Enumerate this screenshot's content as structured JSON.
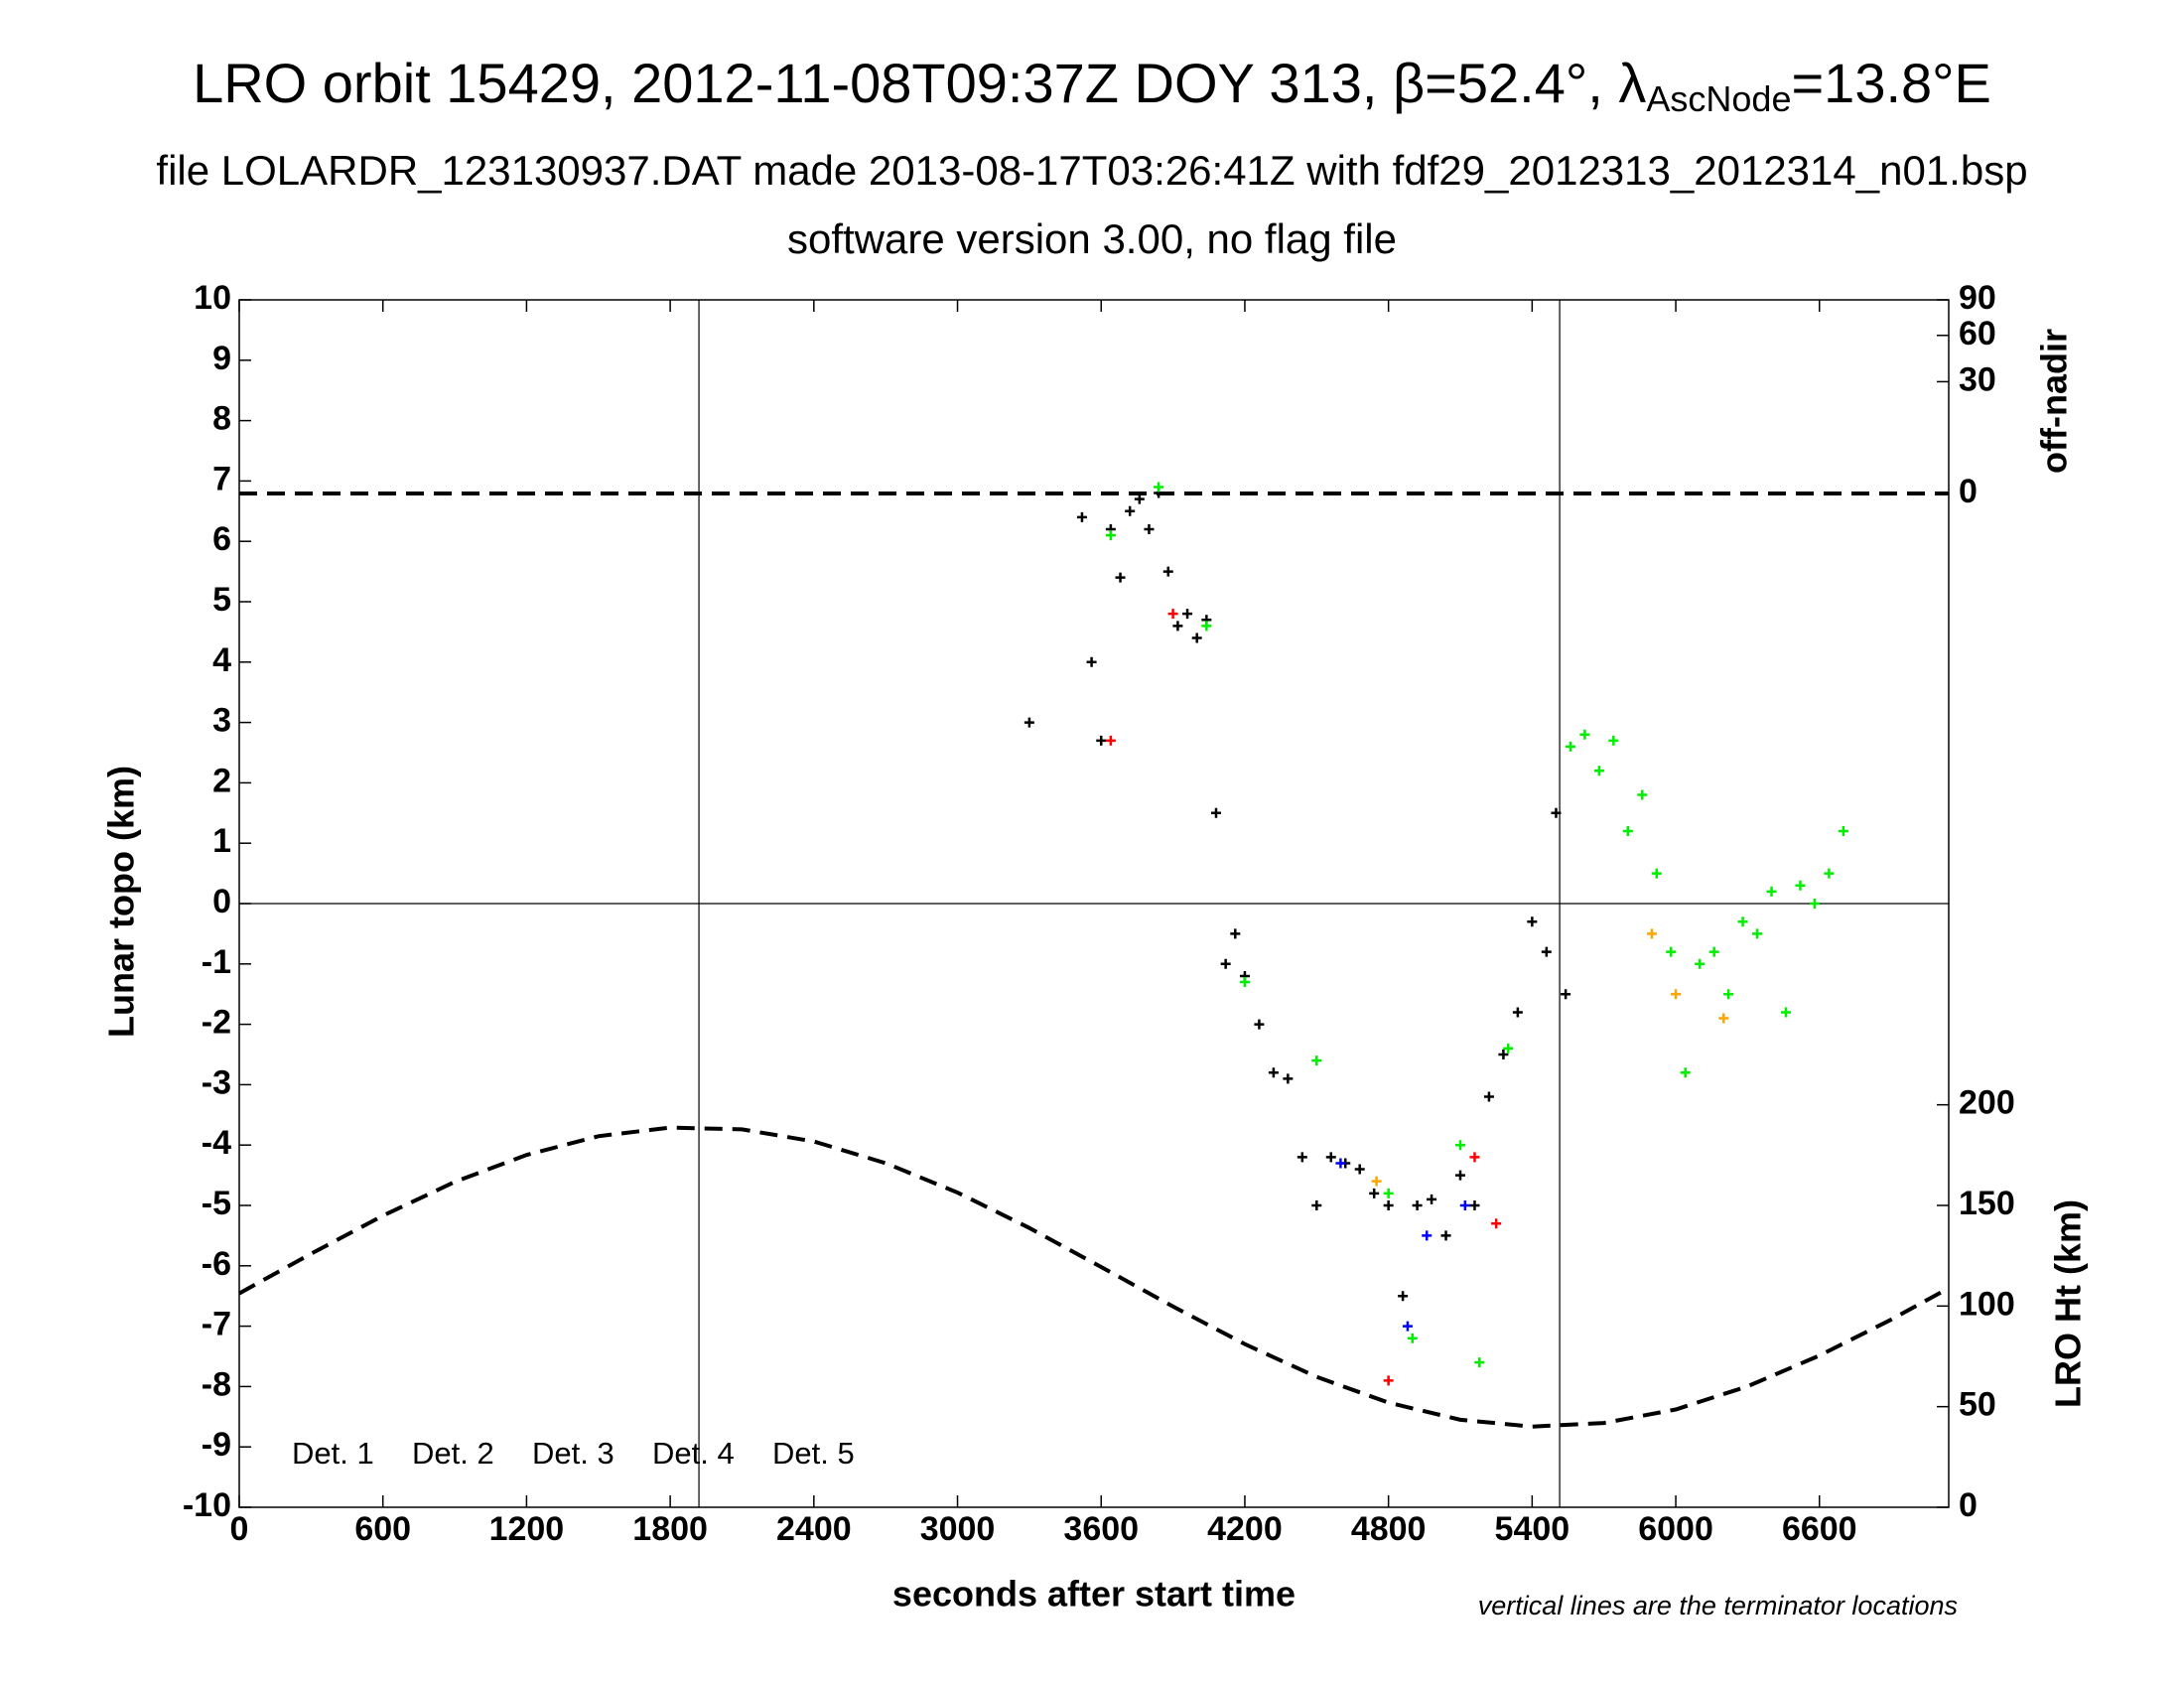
{
  "chart_data": {
    "type": "scatter",
    "title": "LRO orbit 15429, 2012-11-08T09:37Z DOY 313, β=52.4°, λ",
    "title_sub": "AscNode",
    "title_end": "=13.8°E",
    "subtitle": "file LOLARDR_123130937.DAT made 2013-08-17T03:26:41Z with fdf29_2012313_2012314_n01.bsp",
    "subtitle2": "software version 3.00, no flag file",
    "xlabel": "seconds after start time",
    "ylabel": "Lunar topo (km)",
    "y2label": "LRO Ht (km)",
    "y3label": "off-nadir",
    "note": "vertical lines are the terminator locations",
    "xlim": [
      0,
      7140
    ],
    "xticks": [
      0,
      600,
      1200,
      1800,
      2400,
      3000,
      3600,
      4200,
      4800,
      5400,
      6000,
      6600
    ],
    "ylim": [
      -10,
      10
    ],
    "yticks": [
      -10,
      -9,
      -8,
      -7,
      -6,
      -5,
      -4,
      -3,
      -2,
      -1,
      0,
      1,
      2,
      3,
      4,
      5,
      6,
      7,
      8,
      9,
      10
    ],
    "y2lim": [
      0,
      600
    ],
    "y2ticks": [
      0,
      50,
      100,
      150,
      200
    ],
    "y3lim": [
      0,
      90
    ],
    "y3ticks": [
      90,
      60,
      30,
      0
    ],
    "y3scale": "sqrt",
    "terminators": [
      1920,
      5515
    ],
    "series": [
      {
        "name": "Det. 1",
        "color": "#000000",
        "x": [
          3300,
          3520,
          3560,
          3600,
          3640,
          3680,
          3720,
          3760,
          3800,
          3840,
          3880,
          3920,
          3960,
          4000,
          4040,
          4080,
          4120,
          4160,
          4200,
          4260,
          4320,
          4380,
          4440,
          4500,
          4560,
          4620,
          4680,
          4740,
          4800,
          4860,
          4920,
          4980,
          5040,
          5100,
          5160,
          5220,
          5280,
          5340,
          5400,
          5460,
          5500,
          5540
        ],
        "values": [
          3.0,
          6.4,
          4.0,
          2.7,
          6.2,
          5.4,
          6.5,
          6.7,
          6.2,
          6.8,
          5.5,
          4.6,
          4.8,
          4.4,
          4.7,
          1.5,
          -1.0,
          -0.5,
          -1.2,
          -2.0,
          -2.8,
          -2.9,
          -4.2,
          -5.0,
          -4.2,
          -4.3,
          -4.4,
          -4.8,
          -5.0,
          -6.5,
          -5.0,
          -4.9,
          -5.5,
          -4.5,
          -5.0,
          -3.2,
          -2.5,
          -1.8,
          -0.3,
          -0.8,
          1.5,
          -1.5
        ]
      },
      {
        "name": "Det. 2",
        "color": "#0000ff",
        "x": [
          4600,
          4880,
          4960,
          5120
        ],
        "values": [
          -4.3,
          -7.0,
          -5.5,
          -5.0
        ]
      },
      {
        "name": "Det. 3",
        "color": "#00ee00",
        "x": [
          3640,
          3840,
          4040,
          4200,
          4500,
          4800,
          4900,
          5100,
          5180,
          5300,
          5560,
          5620,
          5680,
          5740,
          5800,
          5860,
          5920,
          5980,
          6040,
          6100,
          6160,
          6220,
          6280,
          6340,
          6400,
          6460,
          6520,
          6580,
          6640,
          6700
        ],
        "values": [
          6.1,
          6.9,
          4.6,
          -1.3,
          -2.6,
          -4.8,
          -7.2,
          -4.0,
          -7.6,
          -2.4,
          2.6,
          2.8,
          2.2,
          2.7,
          1.2,
          1.8,
          0.5,
          -0.8,
          -2.8,
          -1.0,
          -0.8,
          -1.5,
          -0.3,
          -0.5,
          0.2,
          -1.8,
          0.3,
          0.0,
          0.5,
          1.2
        ]
      },
      {
        "name": "Det. 4",
        "color": "#ffa500",
        "x": [
          4750,
          5900,
          6000,
          6200
        ],
        "values": [
          -4.6,
          -0.5,
          -1.5,
          -1.9
        ]
      },
      {
        "name": "Det. 5",
        "color": "#ff0000",
        "x": [
          3640,
          3900,
          4800,
          5160,
          5250
        ],
        "values": [
          2.7,
          4.8,
          -7.9,
          -4.2,
          -5.3
        ]
      }
    ],
    "height": {
      "x": [
        0,
        300,
        600,
        900,
        1200,
        1500,
        1800,
        2100,
        2400,
        2700,
        3000,
        3300,
        3600,
        3900,
        4200,
        4500,
        4800,
        5100,
        5400,
        5700,
        6000,
        6300,
        6600,
        6900,
        7140
      ],
      "values": [
        106.3,
        126.0,
        144.9,
        161.7,
        175.1,
        184.4,
        188.7,
        187.8,
        181.8,
        171.0,
        156.4,
        138.8,
        119.4,
        99.8,
        81.1,
        64.8,
        52.0,
        43.5,
        40.1,
        41.9,
        48.6,
        60.1,
        75.4,
        93.3,
        108.9
      ]
    },
    "off_nadir": {
      "x": [
        0,
        7140
      ],
      "values": [
        0,
        0
      ]
    }
  }
}
